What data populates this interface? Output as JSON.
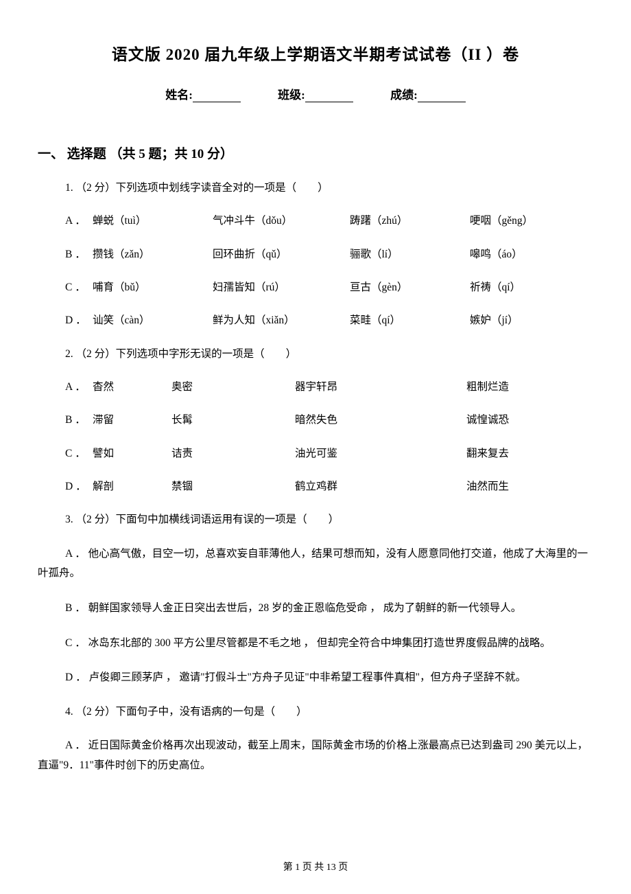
{
  "title": "语文版 2020 届九年级上学期语文半期考试试卷（II ）卷",
  "info": {
    "name_label": "姓名:",
    "class_label": "班级:",
    "score_label": "成绩:"
  },
  "section1": {
    "heading": "一、 选择题 （共 5 题；共 10 分）",
    "q1": {
      "stem": "1.  （2 分）下列选项中划线字读音全对的一项是（　　）",
      "options": [
        {
          "label": "A ．",
          "c1": "蝉蜕（tuì）",
          "c2": "气冲斗牛（dǒu）",
          "c3": "踌躇（zhú）",
          "c4": "哽咽（gěng）"
        },
        {
          "label": "B ．",
          "c1": "攒钱（zǎn）",
          "c2": "回环曲折（qǔ）",
          "c3": "骊歌（lí）",
          "c4": "嗥鸣（áo）"
        },
        {
          "label": "C ．",
          "c1": "哺育（bǔ）",
          "c2": "妇孺皆知（rú）",
          "c3": "亘古（gèn）",
          "c4": "祈祷（qí）"
        },
        {
          "label": "D ．",
          "c1": "讪笑（càn）",
          "c2": "鲜为人知（xiǎn）",
          "c3": "菜畦（qí）",
          "c4": "嫉妒（jí）"
        }
      ]
    },
    "q2": {
      "stem": "2.  （2 分）下列选项中字形无误的一项是（　　）",
      "options": [
        {
          "label": "A ．",
          "c1": "杳然",
          "c2": "奥密",
          "c3": "器宇轩昂",
          "c4": "粗制烂造"
        },
        {
          "label": "B ．",
          "c1": "滞留",
          "c2": "长髯",
          "c3": "暗然失色",
          "c4": "诚惶诚恐"
        },
        {
          "label": "C ．",
          "c1": "譬如",
          "c2": "诘责",
          "c3": "油光可鉴",
          "c4": "翻来复去"
        },
        {
          "label": "D ．",
          "c1": "解剖",
          "c2": "禁锢",
          "c3": "鹤立鸡群",
          "c4": "油然而生"
        }
      ]
    },
    "q3": {
      "stem": "3.  （2 分）下面句中加横线词语运用有误的一项是（　　）",
      "options": [
        "A ． 他心高气傲，目空一切，总喜欢妄自菲薄他人，结果可想而知，没有人愿意同他打交道，他成了大海里的一叶孤舟。",
        "B ． 朝鲜国家领导人金正日突出去世后，28 岁的金正恩临危受命 ， 成为了朝鲜的新一代领导人。",
        "C ． 冰岛东北部的 300 平方公里尽管都是不毛之地 ， 但却完全符合中坤集团打造世界度假品牌的战略。",
        "D ． 卢俊卿三顾茅庐 ， 邀请\"打假斗士\"方舟子见证\"中非希望工程事件真相\"，但方舟子坚辞不就。"
      ]
    },
    "q4": {
      "stem": "4.  （2 分）下面句子中，没有语病的一句是（　　）",
      "options": [
        "A ． 近日国际黄金价格再次出现波动，截至上周末，国际黄金市场的价格上涨最高点已达到盎司 290 美元以上，直逼\"9．11\"事件时创下的历史高位。"
      ]
    }
  },
  "footer": "第 1 页 共 13 页"
}
